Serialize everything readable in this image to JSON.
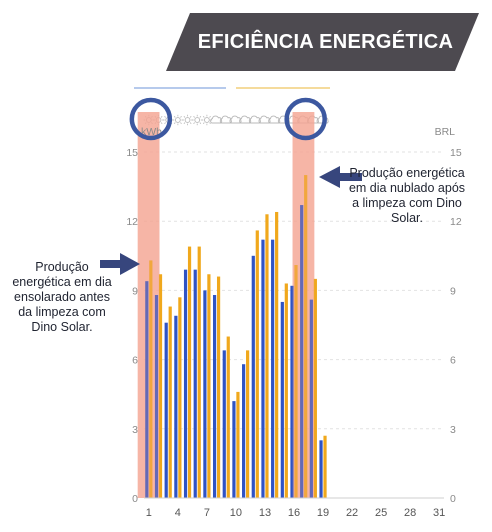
{
  "banner": {
    "title": "EFICIÊNCIA ENERGÉTICA"
  },
  "annotations": {
    "left": "Produção energética em dia ensolarado antes da limpeza com Dino Solar.",
    "right": "Produção energética em dia nublado após a limpeza com Dino Solar."
  },
  "colors": {
    "banner_bg": "#4d4a50",
    "bar_blue": "#2f53c4",
    "bar_orange": "#f0a81c",
    "highlight": "#f4a493",
    "circle": "#3c58a0",
    "arrow": "#37467d"
  },
  "weather_icons": [
    "sun-icon",
    "sun-icon",
    "sun-icon",
    "sun-icon",
    "sun-icon",
    "sun-icon",
    "sun-icon",
    "cloud-icon",
    "cloud-icon",
    "cloud-icon",
    "cloud-icon",
    "cloud-icon",
    "cloud-icon",
    "cloud-icon",
    "cloud-icon",
    "cloud-icon",
    "cloud-icon",
    "cloud-icon",
    "cloud-icon"
  ],
  "chart_data": {
    "type": "bar",
    "x": [
      1,
      2,
      3,
      4,
      5,
      6,
      7,
      8,
      9,
      10,
      11,
      12,
      13,
      14,
      15,
      16,
      17,
      18,
      19
    ],
    "xticks": [
      "1",
      "4",
      "7",
      "10",
      "13",
      "16",
      "19",
      "22",
      "25",
      "28",
      "31"
    ],
    "xlim": [
      0.5,
      31.5
    ],
    "ylim": [
      0,
      15
    ],
    "yticks": [
      "0",
      "3",
      "6",
      "9",
      "12",
      "15"
    ],
    "ylabel_left": "kWh",
    "ylabel_right": "BRL",
    "grid": true,
    "series": [
      {
        "color": "blue",
        "values": [
          9.4,
          8.8,
          7.6,
          7.9,
          9.9,
          9.9,
          9.0,
          8.8,
          6.4,
          4.2,
          5.8,
          10.5,
          11.2,
          11.2,
          8.5,
          9.2,
          12.7,
          8.6,
          2.5
        ]
      },
      {
        "color": "orange",
        "values": [
          10.3,
          9.7,
          8.3,
          8.7,
          10.9,
          10.9,
          9.7,
          9.6,
          7.0,
          4.6,
          6.4,
          11.6,
          12.3,
          12.4,
          9.3,
          10.1,
          14.0,
          9.5,
          2.7
        ]
      }
    ],
    "highlight_days": [
      1,
      17
    ]
  }
}
